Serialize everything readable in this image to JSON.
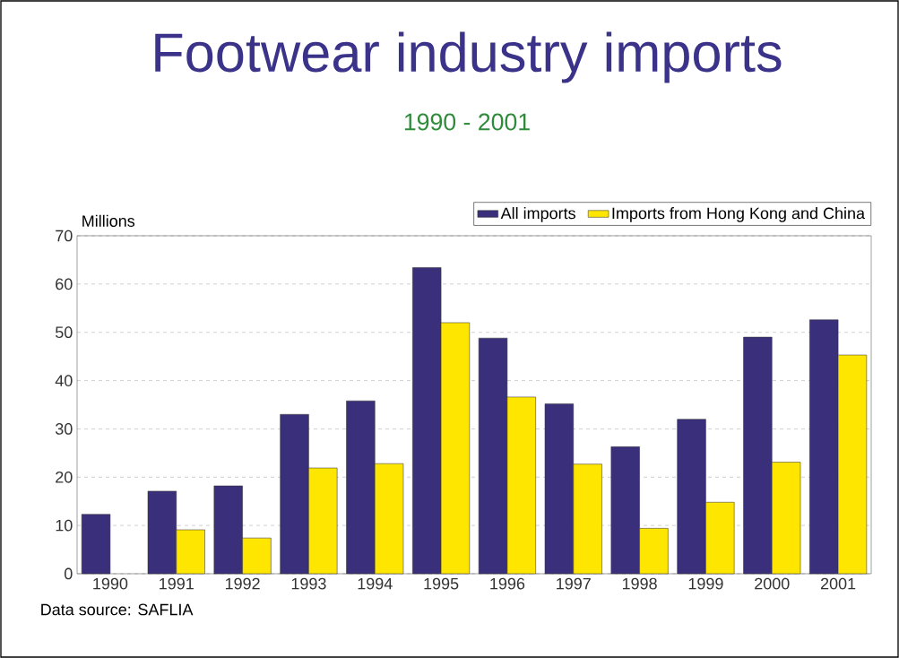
{
  "chart_data": {
    "type": "bar",
    "title": "Footwear industry imports",
    "subtitle": "1990 - 2001",
    "ylabel": "Millions",
    "categories": [
      "1990",
      "1991",
      "1992",
      "1993",
      "1994",
      "1995",
      "1996",
      "1997",
      "1998",
      "1999",
      "2000",
      "2001"
    ],
    "series": [
      {
        "name": "All imports",
        "color": "#3a2f7a",
        "values": [
          12.3,
          17.1,
          18.2,
          33.0,
          35.8,
          63.4,
          48.8,
          35.2,
          26.3,
          32.0,
          49.0,
          52.6
        ]
      },
      {
        "name": "Imports from Hong Kong and China",
        "color": "#ffe600",
        "values": [
          null,
          9.1,
          7.4,
          21.9,
          22.8,
          52.0,
          36.6,
          22.7,
          9.4,
          14.8,
          23.1,
          45.3
        ]
      }
    ],
    "ylim": [
      0,
      70
    ],
    "yticks": [
      0,
      10,
      20,
      30,
      40,
      50,
      60,
      70
    ],
    "grid": "y",
    "legend": "top right",
    "annotations": [
      "Data source: SAFLIA"
    ]
  }
}
